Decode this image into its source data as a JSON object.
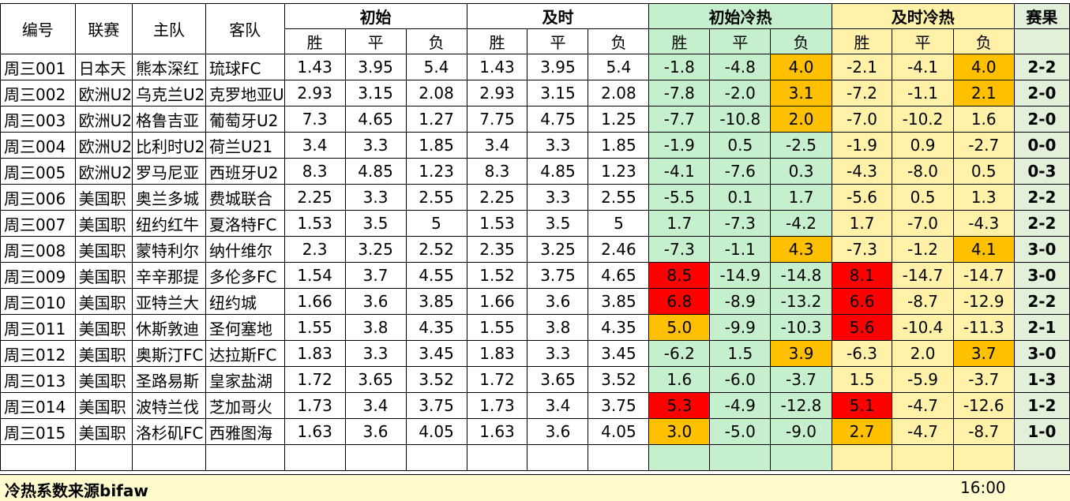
{
  "headers": {
    "id": "编号",
    "league": "联赛",
    "home": "主队",
    "away": "客队",
    "initial": "初始",
    "live": "及时",
    "initial_hot": "初始冷热",
    "live_hot": "及时冷热",
    "result": "赛果",
    "sub": [
      "胜",
      "平",
      "负",
      "胜",
      "平",
      "负",
      "胜",
      "平",
      "负",
      "胜",
      "平",
      "负"
    ]
  },
  "colors": {
    "green_fill": "#c6efce",
    "yellow_fill": "#fff2a8",
    "orange_highlight": "#ffc000",
    "red_highlight": "#ff0000"
  },
  "rows": [
    {
      "id": "周三001",
      "league": "日本天",
      "home": "熊本深红",
      "away": "琉球FC",
      "init": [
        "1.43",
        "3.95",
        "5.4"
      ],
      "live": [
        "1.43",
        "3.95",
        "5.4"
      ],
      "ih": [
        "-1.8",
        "-4.8",
        "4.0"
      ],
      "lh": [
        "-2.1",
        "-4.1",
        "4.0"
      ],
      "ihc": [
        "",
        "",
        "o"
      ],
      "lhc": [
        "",
        "",
        "o"
      ],
      "result": "2-2"
    },
    {
      "id": "周三002",
      "league": "欧洲U2",
      "home": "乌克兰U2",
      "away": "克罗地亚U",
      "init": [
        "2.93",
        "3.15",
        "2.08"
      ],
      "live": [
        "2.93",
        "3.15",
        "2.08"
      ],
      "ih": [
        "-7.8",
        "-2.0",
        "3.1"
      ],
      "lh": [
        "-7.2",
        "-1.1",
        "2.1"
      ],
      "ihc": [
        "",
        "",
        "o"
      ],
      "lhc": [
        "",
        "",
        "o"
      ],
      "result": "2-0"
    },
    {
      "id": "周三003",
      "league": "欧洲U2",
      "home": "格鲁吉亚",
      "away": "葡萄牙U2",
      "init": [
        "7.3",
        "4.65",
        "1.27"
      ],
      "live": [
        "7.75",
        "4.75",
        "1.25"
      ],
      "ih": [
        "-7.7",
        "-10.8",
        "2.0"
      ],
      "lh": [
        "-7.0",
        "-10.2",
        "1.6"
      ],
      "ihc": [
        "",
        "",
        "o"
      ],
      "lhc": [
        "",
        "",
        ""
      ],
      "result": "2-0"
    },
    {
      "id": "周三004",
      "league": "欧洲U2",
      "home": "比利时U2",
      "away": "荷兰U21",
      "init": [
        "3.4",
        "3.3",
        "1.85"
      ],
      "live": [
        "3.4",
        "3.3",
        "1.85"
      ],
      "ih": [
        "-1.9",
        "0.5",
        "-2.5"
      ],
      "lh": [
        "-1.9",
        "0.9",
        "-2.7"
      ],
      "ihc": [
        "",
        "",
        ""
      ],
      "lhc": [
        "",
        "",
        ""
      ],
      "result": "0-0"
    },
    {
      "id": "周三005",
      "league": "欧洲U2",
      "home": "罗马尼亚",
      "away": "西班牙U2",
      "init": [
        "8.3",
        "4.85",
        "1.23"
      ],
      "live": [
        "8.3",
        "4.85",
        "1.23"
      ],
      "ih": [
        "-4.1",
        "-7.6",
        "0.3"
      ],
      "lh": [
        "-4.3",
        "-8.0",
        "0.5"
      ],
      "ihc": [
        "",
        "",
        ""
      ],
      "lhc": [
        "",
        "",
        ""
      ],
      "result": "0-3"
    },
    {
      "id": "周三006",
      "league": "美国职",
      "home": "奥兰多城",
      "away": "费城联合",
      "init": [
        "2.25",
        "3.3",
        "2.55"
      ],
      "live": [
        "2.25",
        "3.3",
        "2.55"
      ],
      "ih": [
        "-5.5",
        "0.1",
        "1.7"
      ],
      "lh": [
        "-5.6",
        "0.5",
        "1.3"
      ],
      "ihc": [
        "",
        "",
        ""
      ],
      "lhc": [
        "",
        "",
        ""
      ],
      "result": "2-2"
    },
    {
      "id": "周三007",
      "league": "美国职",
      "home": "纽约红牛",
      "away": "夏洛特FC",
      "init": [
        "1.53",
        "3.5",
        "5"
      ],
      "live": [
        "1.53",
        "3.5",
        "5"
      ],
      "ih": [
        "1.7",
        "-7.3",
        "-4.2"
      ],
      "lh": [
        "1.7",
        "-7.0",
        "-4.3"
      ],
      "ihc": [
        "",
        "",
        ""
      ],
      "lhc": [
        "",
        "",
        ""
      ],
      "result": "2-2"
    },
    {
      "id": "周三008",
      "league": "美国职",
      "home": "蒙特利尔",
      "away": "纳什维尔",
      "init": [
        "2.3",
        "3.25",
        "2.52"
      ],
      "live": [
        "2.35",
        "3.25",
        "2.46"
      ],
      "ih": [
        "-7.3",
        "-1.1",
        "4.3"
      ],
      "lh": [
        "-7.3",
        "-1.2",
        "4.1"
      ],
      "ihc": [
        "",
        "",
        "o"
      ],
      "lhc": [
        "",
        "",
        "o"
      ],
      "result": "3-0"
    },
    {
      "id": "周三009",
      "league": "美国职",
      "home": "辛辛那提",
      "away": "多伦多FC",
      "init": [
        "1.54",
        "3.7",
        "4.55"
      ],
      "live": [
        "1.52",
        "3.75",
        "4.65"
      ],
      "ih": [
        "8.5",
        "-14.9",
        "-14.8"
      ],
      "lh": [
        "8.1",
        "-14.7",
        "-14.7"
      ],
      "ihc": [
        "r",
        "",
        ""
      ],
      "lhc": [
        "r",
        "",
        ""
      ],
      "result": "3-0"
    },
    {
      "id": "周三010",
      "league": "美国职",
      "home": "亚特兰大",
      "away": "纽约城",
      "init": [
        "1.66",
        "3.6",
        "3.85"
      ],
      "live": [
        "1.66",
        "3.6",
        "3.85"
      ],
      "ih": [
        "6.8",
        "-8.9",
        "-13.2"
      ],
      "lh": [
        "6.6",
        "-8.7",
        "-12.9"
      ],
      "ihc": [
        "r",
        "",
        ""
      ],
      "lhc": [
        "r",
        "",
        ""
      ],
      "result": "2-2"
    },
    {
      "id": "周三011",
      "league": "美国职",
      "home": "休斯敦迪",
      "away": "圣何塞地",
      "init": [
        "1.55",
        "3.8",
        "4.35"
      ],
      "live": [
        "1.55",
        "3.8",
        "4.35"
      ],
      "ih": [
        "5.0",
        "-9.9",
        "-10.3"
      ],
      "lh": [
        "5.6",
        "-10.4",
        "-11.3"
      ],
      "ihc": [
        "o",
        "",
        ""
      ],
      "lhc": [
        "r",
        "",
        ""
      ],
      "result": "2-1"
    },
    {
      "id": "周三012",
      "league": "美国职",
      "home": "奥斯汀FC",
      "away": "达拉斯FC",
      "init": [
        "1.83",
        "3.3",
        "3.45"
      ],
      "live": [
        "1.83",
        "3.3",
        "3.45"
      ],
      "ih": [
        "-6.2",
        "1.5",
        "3.9"
      ],
      "lh": [
        "-6.3",
        "2.0",
        "3.7"
      ],
      "ihc": [
        "",
        "",
        "o"
      ],
      "lhc": [
        "",
        "",
        "o"
      ],
      "result": "3-0"
    },
    {
      "id": "周三013",
      "league": "美国职",
      "home": "圣路易斯",
      "away": "皇家盐湖",
      "init": [
        "1.72",
        "3.65",
        "3.52"
      ],
      "live": [
        "1.72",
        "3.65",
        "3.52"
      ],
      "ih": [
        "1.6",
        "-6.0",
        "-3.7"
      ],
      "lh": [
        "1.5",
        "-5.9",
        "-3.7"
      ],
      "ihc": [
        "",
        "",
        ""
      ],
      "lhc": [
        "",
        "",
        ""
      ],
      "result": "1-3"
    },
    {
      "id": "周三014",
      "league": "美国职",
      "home": "波特兰伐",
      "away": "芝加哥火",
      "init": [
        "1.73",
        "3.4",
        "3.75"
      ],
      "live": [
        "1.73",
        "3.4",
        "3.75"
      ],
      "ih": [
        "5.3",
        "-4.9",
        "-12.8"
      ],
      "lh": [
        "5.1",
        "-4.7",
        "-12.6"
      ],
      "ihc": [
        "r",
        "",
        ""
      ],
      "lhc": [
        "r",
        "",
        ""
      ],
      "result": "1-2"
    },
    {
      "id": "周三015",
      "league": "美国职",
      "home": "洛杉矶FC",
      "away": "西雅图海",
      "init": [
        "1.63",
        "3.6",
        "4.05"
      ],
      "live": [
        "1.63",
        "3.6",
        "4.05"
      ],
      "ih": [
        "3.0",
        "-5.0",
        "-9.0"
      ],
      "lh": [
        "2.7",
        "-4.7",
        "-8.7"
      ],
      "ihc": [
        "o",
        "",
        ""
      ],
      "lhc": [
        "o",
        "",
        ""
      ],
      "result": "1-0"
    }
  ],
  "footer": {
    "source": "冷热系数来源bifaw",
    "time": "16:00"
  }
}
